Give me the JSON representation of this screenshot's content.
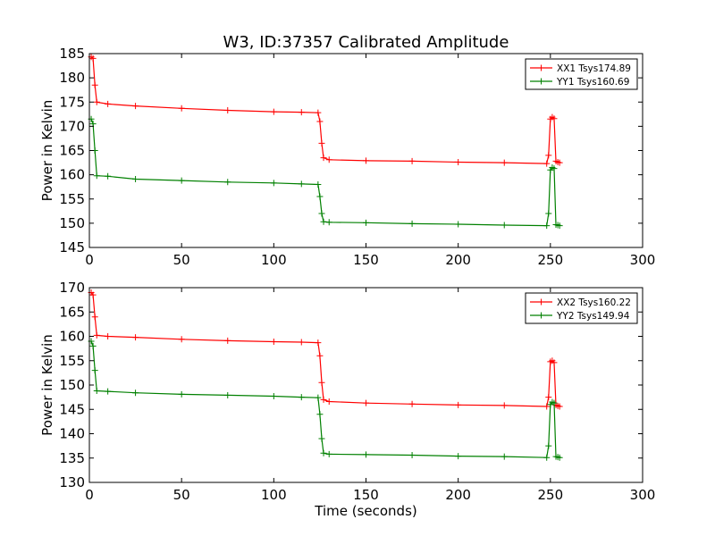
{
  "chart_data": [
    {
      "type": "line",
      "title": "W3, ID:37357 Calibrated Amplitude",
      "xlabel": "",
      "ylabel": "Power in Kelvin",
      "xlim": [
        0,
        300
      ],
      "ylim": [
        145,
        185
      ],
      "xticks": [
        "0",
        "50",
        "100",
        "150",
        "200",
        "250",
        "300"
      ],
      "yticks": [
        "145",
        "150",
        "155",
        "160",
        "165",
        "170",
        "175",
        "180",
        "185"
      ],
      "grid": false,
      "legend_position": "top-right",
      "series": [
        {
          "name": "XX1 Tsys174.89",
          "color": "#ff0000",
          "x": [
            1,
            2,
            3,
            4,
            10,
            25,
            50,
            75,
            100,
            115,
            124,
            125,
            126,
            127,
            130,
            150,
            175,
            200,
            225,
            248,
            249,
            250,
            251,
            252,
            253,
            254,
            255
          ],
          "y": [
            184.3,
            184.0,
            178.5,
            175.0,
            174.6,
            174.2,
            173.7,
            173.3,
            173.0,
            172.9,
            172.8,
            171.0,
            166.5,
            163.5,
            163.1,
            162.9,
            162.8,
            162.6,
            162.5,
            162.3,
            164.0,
            171.5,
            171.9,
            171.6,
            162.8,
            162.6,
            162.5
          ]
        },
        {
          "name": "YY1 Tsys160.69",
          "color": "#008000",
          "x": [
            1,
            2,
            3,
            4,
            10,
            25,
            50,
            75,
            100,
            115,
            124,
            125,
            126,
            127,
            130,
            150,
            175,
            200,
            225,
            248,
            249,
            250,
            251,
            252,
            253,
            254,
            255
          ],
          "y": [
            171.5,
            170.5,
            165.0,
            159.8,
            159.7,
            159.1,
            158.8,
            158.5,
            158.3,
            158.1,
            158.0,
            155.5,
            152.0,
            150.3,
            150.2,
            150.1,
            149.9,
            149.8,
            149.6,
            149.5,
            152.0,
            161.0,
            161.5,
            161.3,
            149.7,
            149.6,
            149.5
          ]
        }
      ]
    },
    {
      "type": "line",
      "title": "",
      "xlabel": "Time (seconds)",
      "ylabel": "Power in Kelvin",
      "xlim": [
        0,
        300
      ],
      "ylim": [
        130,
        170
      ],
      "xticks": [
        "0",
        "50",
        "100",
        "150",
        "200",
        "250",
        "300"
      ],
      "yticks": [
        "130",
        "135",
        "140",
        "145",
        "150",
        "155",
        "160",
        "165",
        "170"
      ],
      "grid": false,
      "legend_position": "top-right",
      "series": [
        {
          "name": "XX2 Tsys160.22",
          "color": "#ff0000",
          "x": [
            1,
            2,
            3,
            4,
            10,
            25,
            50,
            75,
            100,
            115,
            124,
            125,
            126,
            127,
            130,
            150,
            175,
            200,
            225,
            248,
            249,
            250,
            251,
            252,
            253,
            254,
            255
          ],
          "y": [
            169.0,
            168.5,
            164.0,
            160.2,
            160.0,
            159.8,
            159.4,
            159.1,
            158.9,
            158.8,
            158.7,
            156.0,
            150.5,
            147.0,
            146.6,
            146.3,
            146.1,
            145.9,
            145.8,
            145.6,
            147.5,
            154.8,
            155.0,
            154.6,
            145.9,
            145.7,
            145.6
          ]
        },
        {
          "name": "YY2 Tsys149.94",
          "color": "#008000",
          "x": [
            1,
            2,
            3,
            4,
            10,
            25,
            50,
            75,
            100,
            115,
            124,
            125,
            126,
            127,
            130,
            150,
            175,
            200,
            225,
            248,
            249,
            250,
            251,
            252,
            253,
            254,
            255
          ],
          "y": [
            159.0,
            158.0,
            153.0,
            148.8,
            148.7,
            148.4,
            148.1,
            147.9,
            147.7,
            147.5,
            147.4,
            144.0,
            139.0,
            136.0,
            135.8,
            135.7,
            135.6,
            135.4,
            135.3,
            135.1,
            137.5,
            146.0,
            146.5,
            146.3,
            135.3,
            135.2,
            135.1
          ]
        }
      ]
    }
  ]
}
